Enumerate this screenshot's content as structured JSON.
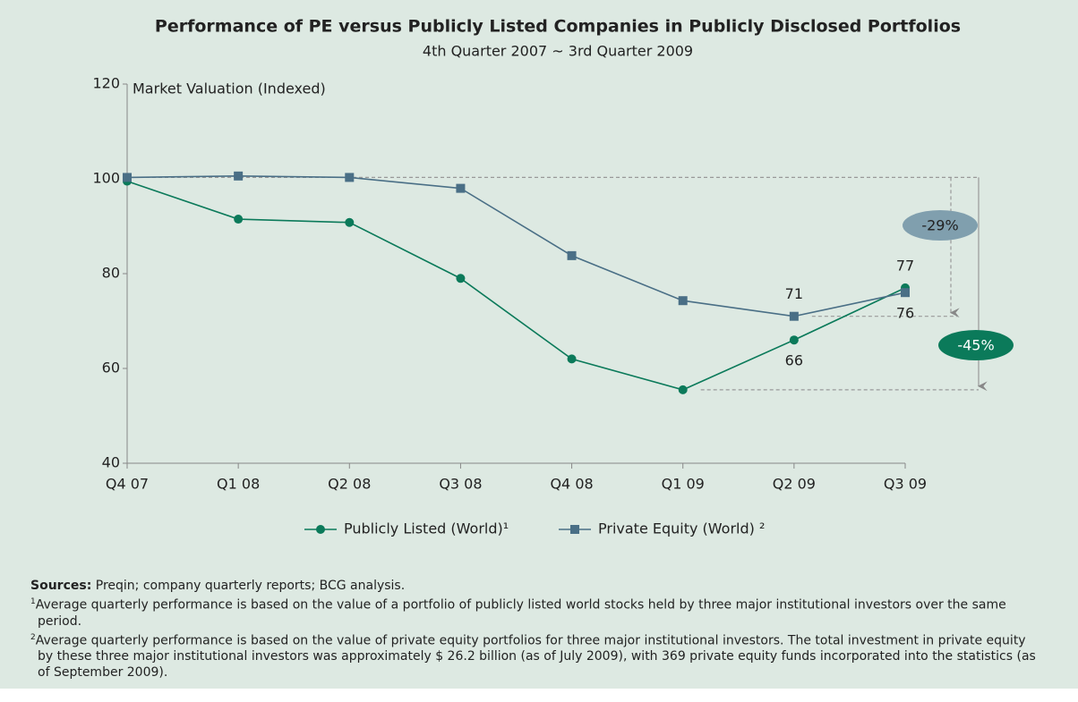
{
  "chart_data": {
    "type": "line",
    "title": "Performance of PE versus Publicly Listed Companies in Publicly Disclosed Portfolios",
    "subtitle": "4th Quarter 2007 ~ 3rd Quarter 2009",
    "y_axis_label": "Market Valuation (Indexed)",
    "categories": [
      "Q4 07",
      "Q1 08",
      "Q2 08",
      "Q3 08",
      "Q4 08",
      "Q1 09",
      "Q2 09",
      "Q3 09"
    ],
    "series": [
      {
        "name": "Publicly Listed (World)¹",
        "color": "#0b7a5a",
        "marker": "circle",
        "values": [
          99.5,
          91.5,
          90.8,
          79,
          62,
          55.5,
          66,
          77
        ],
        "value_labels": [
          null,
          null,
          null,
          null,
          null,
          null,
          "66",
          "77"
        ]
      },
      {
        "name": "Private Equity (World) ²",
        "color": "#4a6f86",
        "marker": "square",
        "values": [
          100.3,
          100.6,
          100.3,
          98,
          83.8,
          74.3,
          71,
          76
        ],
        "value_labels": [
          null,
          null,
          null,
          null,
          null,
          null,
          "71",
          "76"
        ]
      }
    ],
    "ylim": [
      40,
      120
    ],
    "yticks": [
      40,
      60,
      80,
      100,
      120
    ],
    "annotations": [
      {
        "text": "-29%",
        "color": "#809fae"
      },
      {
        "text": "-45%",
        "color": "#0b7a5a"
      }
    ],
    "legend": "bottom"
  },
  "notes": {
    "source_label": "Sources:",
    "source_text": "Preqin; company quarterly reports; BCG analysis.",
    "footnotes": [
      {
        "marker": "1",
        "text": "Average quarterly performance is based on the value of a portfolio of publicly listed world stocks held by three major institutional investors over the same period."
      },
      {
        "marker": "2",
        "text": "Average quarterly performance is based on the value of private equity portfolios for three major institutional investors. The total investment in private equity by these three major institutional investors was approximately $ 26.2 billion (as of July 2009), with 369 private equity funds incorporated into the statistics (as of September 2009)."
      }
    ]
  }
}
